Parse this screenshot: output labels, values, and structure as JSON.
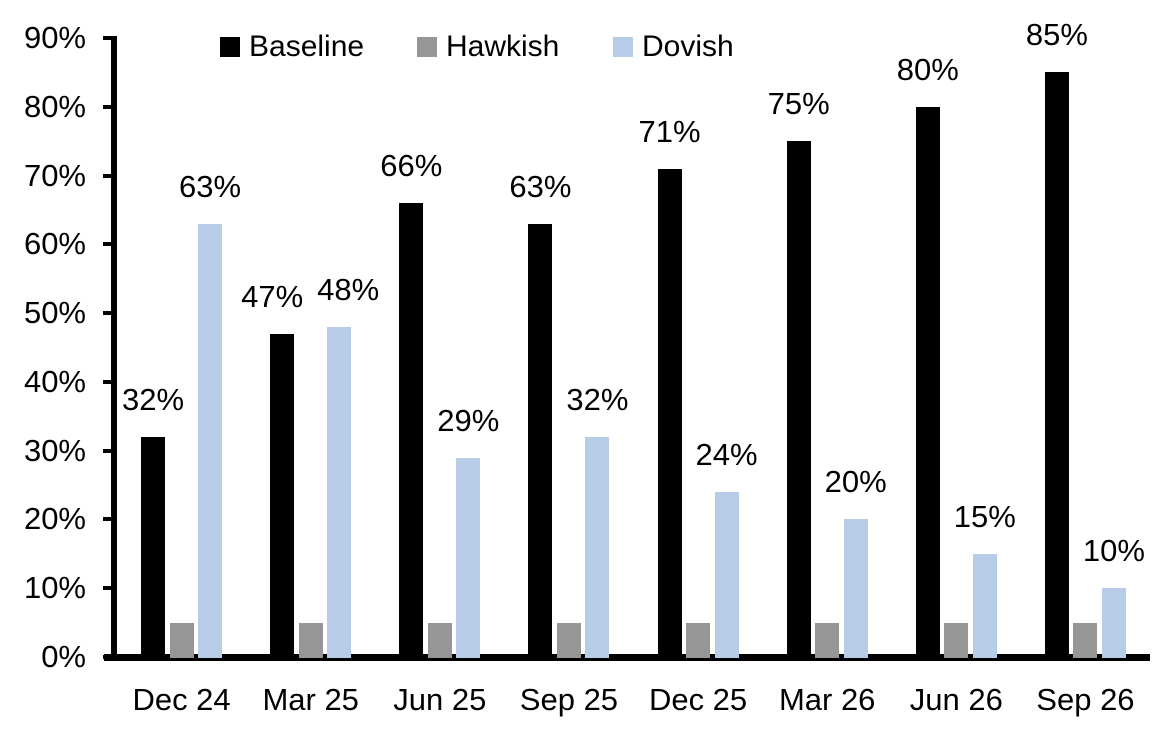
{
  "chart_data": {
    "type": "bar",
    "title": "",
    "xlabel": "",
    "ylabel": "",
    "categories": [
      "Dec 24",
      "Mar 25",
      "Jun 25",
      "Sep 25",
      "Dec 25",
      "Mar 26",
      "Jun 26",
      "Sep 26"
    ],
    "series": [
      {
        "name": "Baseline",
        "color": "#000000",
        "values": [
          32,
          47,
          66,
          63,
          71,
          75,
          80,
          85
        ],
        "data_labels": [
          "32%",
          "47%",
          "66%",
          "63%",
          "71%",
          "75%",
          "80%",
          "85%"
        ]
      },
      {
        "name": "Hawkish",
        "color": "#969696",
        "values": [
          5,
          5,
          5,
          5,
          5,
          5,
          5,
          5
        ],
        "data_labels": []
      },
      {
        "name": "Dovish",
        "color": "#b7cce6",
        "values": [
          63,
          48,
          29,
          32,
          24,
          20,
          15,
          10
        ],
        "data_labels": [
          "63%",
          "48%",
          "29%",
          "32%",
          "24%",
          "20%",
          "15%",
          "10%"
        ]
      }
    ],
    "y_axis": {
      "min": 0,
      "max": 90,
      "step": 10,
      "tick_labels": [
        "0%",
        "10%",
        "20%",
        "30%",
        "40%",
        "50%",
        "60%",
        "70%",
        "80%",
        "90%"
      ]
    },
    "legend": {
      "position": "top",
      "entries": [
        "Baseline",
        "Hawkish",
        "Dovish"
      ]
    },
    "grid": false
  }
}
